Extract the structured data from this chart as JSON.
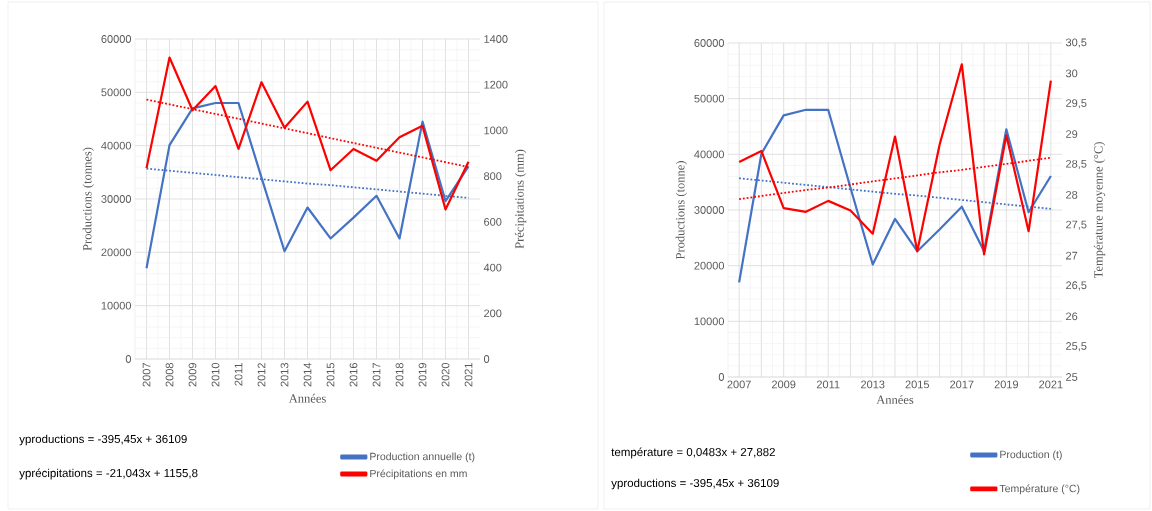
{
  "chart_data": [
    {
      "type": "line",
      "xlabel": "Années",
      "ylabel": "Productions (tonnes)",
      "y2label": "Précipitations (mm)",
      "categories": [
        "2007",
        "2008",
        "2009",
        "2010",
        "2011",
        "2012",
        "2013",
        "2014",
        "2015",
        "2016",
        "2017",
        "2018",
        "2019",
        "2020",
        "2021"
      ],
      "series": [
        {
          "name": "Production annuelle (t)",
          "color": "#4472c4",
          "values": [
            17000,
            40100,
            47000,
            48000,
            48000,
            34000,
            20200,
            28400,
            22600,
            26500,
            30600,
            22600,
            44500,
            29600,
            36100
          ]
        },
        {
          "name": "Précipitations en mm",
          "color": "#ff0000",
          "axis": "y2",
          "values": [
            835,
            1319,
            1088,
            1194,
            919,
            1211,
            1012,
            1126,
            826,
            919,
            867,
            970,
            1020,
            654,
            863
          ]
        },
        {
          "color": "#4472c4",
          "line_style": "dotted",
          "values": [
            35700,
            35300,
            34900,
            34500,
            34100,
            33700,
            33300,
            32900,
            32600,
            32200,
            31800,
            31400,
            31000,
            30600,
            30200
          ]
        },
        {
          "color": "#ff0000",
          "line_style": "dotted",
          "axis": "y2",
          "values": [
            1135,
            1114,
            1093,
            1072,
            1051,
            1030,
            1009,
            988,
            966,
            945,
            924,
            903,
            882,
            861,
            840
          ]
        }
      ],
      "ylim": [
        0,
        60000
      ],
      "yticks": [
        0,
        10000,
        20000,
        30000,
        40000,
        50000,
        60000
      ],
      "y2lim": [
        0,
        1400
      ],
      "y2ticks": [
        0,
        200,
        400,
        600,
        800,
        1000,
        1200,
        1400
      ],
      "grid": true,
      "legend": "bottom",
      "annotations": [
        "yproductions = -395,45x + 36109",
        "yprécipitations = -21,043x + 1155,8"
      ]
    },
    {
      "type": "line",
      "xlabel": "Années",
      "ylabel": "Productions (tonne)",
      "y2label": "Température moyenne (°C)",
      "categories": [
        "2007",
        null,
        "2009",
        null,
        "2011",
        null,
        "2013",
        null,
        "2015",
        null,
        "2017",
        null,
        "2019",
        null,
        "2021"
      ],
      "series": [
        {
          "name": "Production (t)",
          "color": "#4472c4",
          "values": [
            17000,
            40100,
            47000,
            48000,
            48000,
            34000,
            20200,
            28400,
            22600,
            26500,
            30600,
            22600,
            44500,
            29600,
            36100
          ]
        },
        {
          "name": "Température (°C)",
          "color": "#ff0000",
          "axis": "y2",
          "values": [
            28.54,
            28.72,
            27.78,
            27.72,
            27.9,
            27.74,
            27.36,
            28.96,
            27.07,
            28.82,
            30.15,
            27.02,
            28.98,
            27.4,
            29.88
          ]
        },
        {
          "color": "#4472c4",
          "line_style": "dotted",
          "values": [
            35700,
            35300,
            34900,
            34500,
            34100,
            33700,
            33300,
            32900,
            32600,
            32200,
            31800,
            31400,
            31000,
            30600,
            30200
          ]
        },
        {
          "color": "#ff0000",
          "line_style": "dotted",
          "axis": "y2",
          "values": [
            27.93,
            27.98,
            28.03,
            28.08,
            28.12,
            28.17,
            28.22,
            28.27,
            28.32,
            28.37,
            28.41,
            28.46,
            28.51,
            28.56,
            28.61
          ]
        }
      ],
      "ylim": [
        0,
        60000
      ],
      "yticks": [
        0,
        10000,
        20000,
        30000,
        40000,
        50000,
        60000
      ],
      "y2lim": [
        25,
        30.5
      ],
      "y2ticks": [
        25,
        {
          "value": 25.5,
          "label": "25,5"
        },
        26,
        {
          "value": 26.5,
          "label": "26,5"
        },
        27,
        {
          "value": 27.5,
          "label": "27,5"
        },
        28,
        {
          "value": 28.5,
          "label": "28,5"
        },
        29,
        {
          "value": 29.5,
          "label": "29,5"
        },
        30,
        {
          "value": 30.5,
          "label": "30,5"
        }
      ],
      "grid": true,
      "legend": "bottom",
      "annotations": [
        "température = 0,0483x + 27,882",
        "yproductions = -395,45x + 36109"
      ]
    }
  ]
}
